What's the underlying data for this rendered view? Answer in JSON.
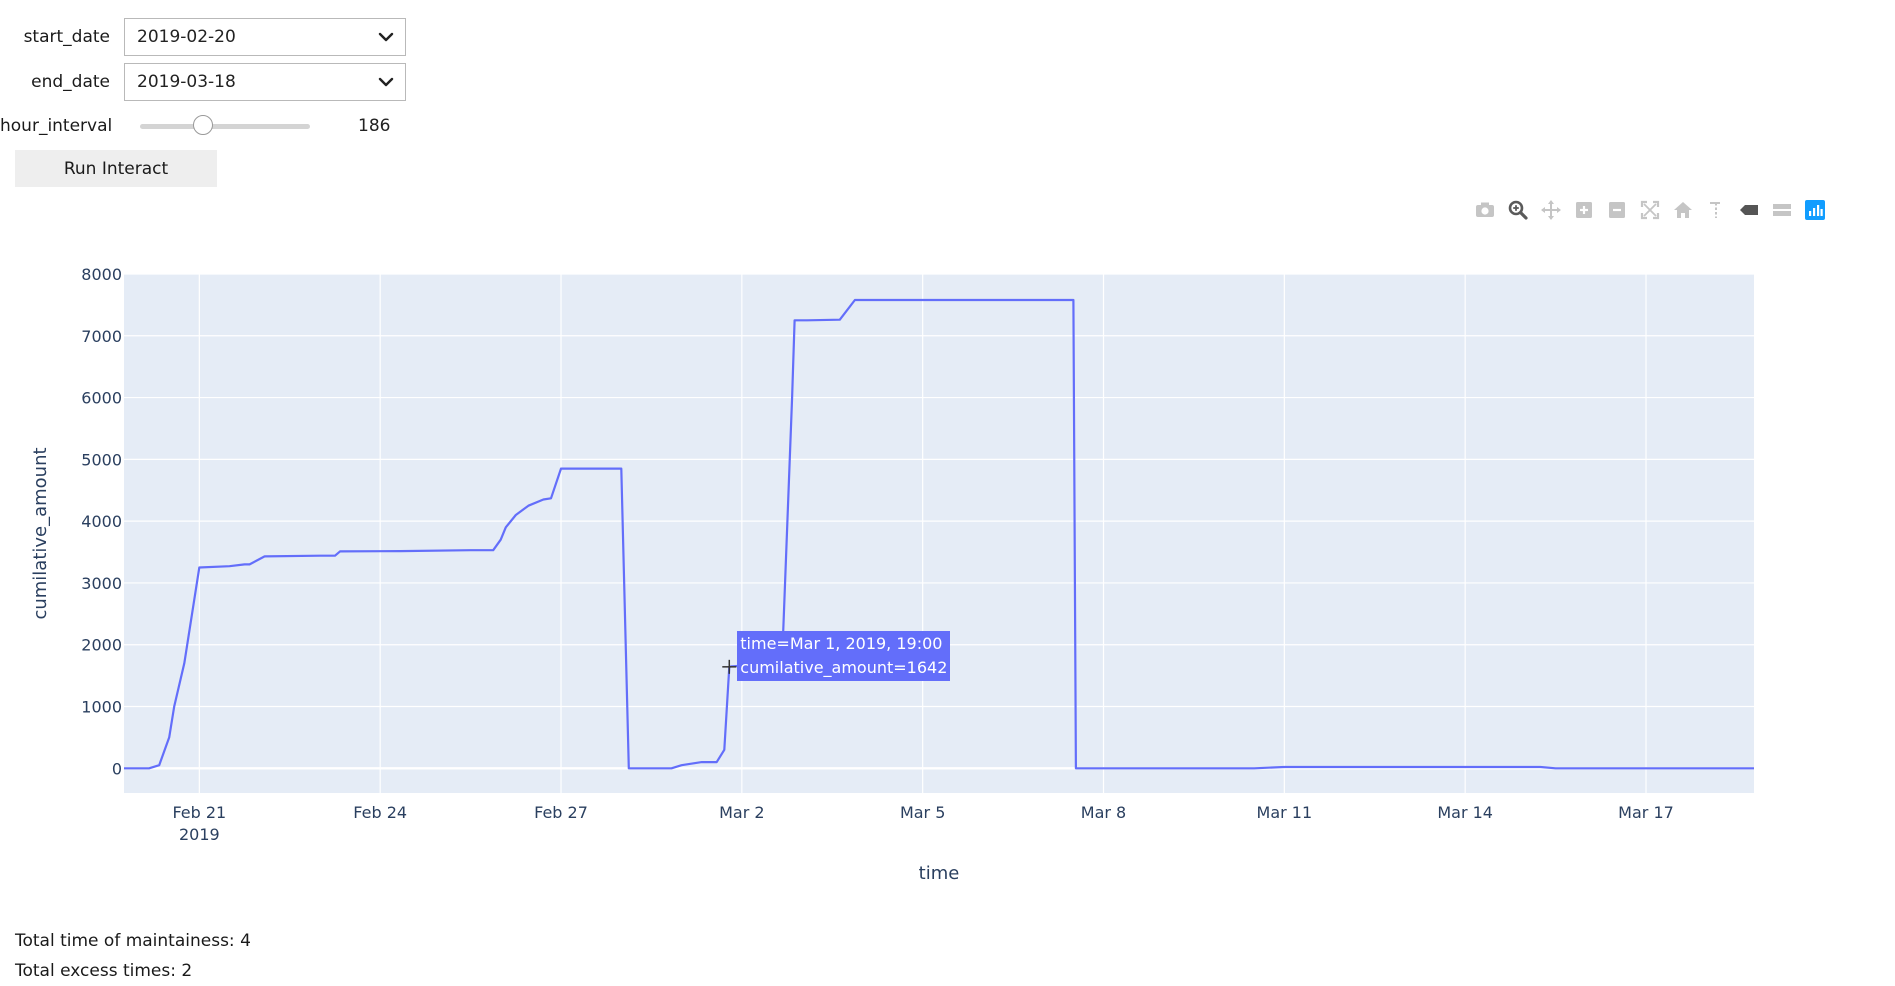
{
  "controls": {
    "start_date": {
      "label": "start_date",
      "value": "2019-02-20"
    },
    "end_date": {
      "label": "end_date",
      "value": "2019-03-18"
    },
    "hour_interval": {
      "label": "hour_interval",
      "value": 186,
      "value_text": "186",
      "min": 1,
      "max": 500
    },
    "run_button": "Run Interact"
  },
  "modebar": [
    "camera-icon",
    "zoom-icon",
    "pan-icon",
    "zoom-in-icon",
    "zoom-out-icon",
    "autoscale-icon",
    "reset-axes-icon",
    "spike-lines-icon",
    "hover-closest-icon",
    "hover-compare-icon",
    "plotly-logo-icon"
  ],
  "chart_data": {
    "type": "line",
    "xlabel": "time",
    "ylabel": "cumilative_amount",
    "title": "",
    "line_color": "#636efa",
    "plot_bg": "#e5ecf6",
    "xlim": [
      "2019-02-19 18:00",
      "2019-03-18 19:00"
    ],
    "ylim": [
      -400,
      8000
    ],
    "yticks": [
      0,
      1000,
      2000,
      3000,
      4000,
      5000,
      6000,
      7000,
      8000
    ],
    "xticks": [
      "2019-02-21",
      "2019-02-24",
      "2019-02-27",
      "2019-03-02",
      "2019-03-05",
      "2019-03-08",
      "2019-03-11",
      "2019-03-14",
      "2019-03-17"
    ],
    "xtick_labels": [
      "Feb 21",
      "Feb 24",
      "Feb 27",
      "Mar 2",
      "Mar 5",
      "Mar 8",
      "Mar 11",
      "Mar 14",
      "Mar 17"
    ],
    "xtick_year_label": "2019",
    "grid": true,
    "series": [
      {
        "x": [
          "2019-02-19 18:00",
          "2019-02-20 04:00",
          "2019-02-20 08:00",
          "2019-02-20 12:00",
          "2019-02-20 14:00",
          "2019-02-20 18:00",
          "2019-02-21 00:00",
          "2019-02-21 12:00",
          "2019-02-21 18:00",
          "2019-02-21 20:00",
          "2019-02-22 02:00",
          "2019-02-23 00:00",
          "2019-02-23 06:00",
          "2019-02-23 08:00",
          "2019-02-24 08:00",
          "2019-02-25 12:00",
          "2019-02-25 21:00",
          "2019-02-26 00:00",
          "2019-02-26 02:00",
          "2019-02-26 06:00",
          "2019-02-26 11:00",
          "2019-02-26 17:00",
          "2019-02-26 20:00",
          "2019-02-27 00:00",
          "2019-02-28 00:00",
          "2019-02-28 03:00",
          "2019-02-28 04:00",
          "2019-02-28 20:00",
          "2019-03-01 00:00",
          "2019-03-01 08:00",
          "2019-03-01 14:00",
          "2019-03-01 17:00",
          "2019-03-01 19:00",
          "2019-03-01 20:00",
          "2019-03-02 16:00",
          "2019-03-02 20:00",
          "2019-03-02 21:00",
          "2019-03-03 02:00",
          "2019-03-03 15:00",
          "2019-03-03 21:00",
          "2019-03-07 12:00",
          "2019-03-07 13:00",
          "2019-03-10 12:00",
          "2019-03-11 00:00",
          "2019-03-13 12:00",
          "2019-03-15 06:00",
          "2019-03-15 12:00",
          "2019-03-17 12:00",
          "2019-03-18 19:00"
        ],
        "y": [
          0,
          0,
          50,
          500,
          1000,
          1700,
          3250,
          3270,
          3300,
          3300,
          3430,
          3440,
          3440,
          3510,
          3515,
          3530,
          3530,
          3700,
          3900,
          4100,
          4250,
          4350,
          4370,
          4850,
          4850,
          0,
          0,
          0,
          50,
          100,
          100,
          300,
          1642,
          1650,
          1700,
          6000,
          7250,
          7250,
          7260,
          7580,
          7580,
          0,
          0,
          20,
          20,
          20,
          0,
          0,
          0
        ]
      }
    ],
    "hover": {
      "x": "2019-03-01 19:00",
      "y": 1642,
      "lines": [
        "time=Mar 1, 2019, 19:00",
        "cumilative_amount=1642"
      ]
    }
  },
  "output": {
    "maintain_time": "Total time of maintainess: 4",
    "excess_times": "Total excess times: 2"
  }
}
